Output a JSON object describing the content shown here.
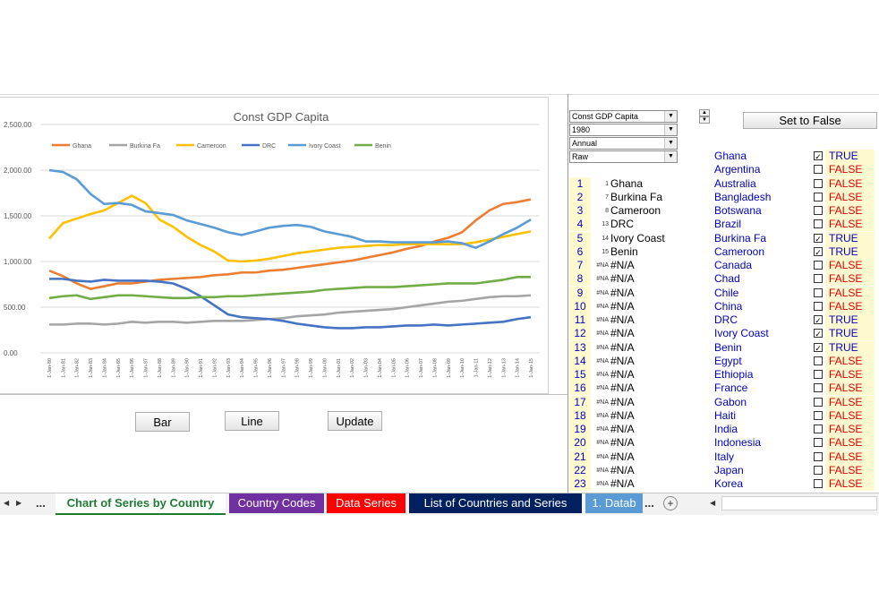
{
  "chart": {
    "title": "Const GDP Capita",
    "yticks": [
      "2,500.00",
      "2,000.00",
      "1,500.00",
      "1,000.00",
      "500.00",
      "0.00"
    ]
  },
  "chart_data": {
    "type": "line",
    "title": "Const GDP Capita",
    "ylim": [
      0,
      2500
    ],
    "x": [
      "1-Jan-80",
      "1-Jan-81",
      "1-Jan-82",
      "1-Jan-83",
      "1-Jan-84",
      "1-Jan-85",
      "1-Jan-86",
      "1-Jan-87",
      "1-Jan-88",
      "1-Jan-89",
      "1-Jan-90",
      "1-Jan-91",
      "1-Jan-92",
      "1-Jan-93",
      "1-Jan-94",
      "1-Jan-95",
      "1-Jan-96",
      "1-Jan-97",
      "1-Jan-98",
      "1-Jan-99",
      "1-Jan-00",
      "1-Jan-01",
      "1-Jan-02",
      "1-Jan-03",
      "1-Jan-04",
      "1-Jan-05",
      "1-Jan-06",
      "1-Jan-07",
      "1-Jan-08",
      "1-Jan-09",
      "1-Jan-10",
      "1-Jan-11",
      "1-Jan-12",
      "1-Jan-13",
      "1-Jan-14",
      "1-Jan-15"
    ],
    "series": [
      {
        "name": "Ghana",
        "color": "#ed7d31",
        "values": [
          900,
          840,
          760,
          700,
          730,
          760,
          760,
          780,
          800,
          810,
          820,
          830,
          850,
          860,
          880,
          880,
          900,
          910,
          930,
          950,
          970,
          990,
          1010,
          1040,
          1070,
          1100,
          1140,
          1170,
          1220,
          1260,
          1320,
          1450,
          1560,
          1630,
          1650,
          1680
        ]
      },
      {
        "name": "Burkina Fa",
        "color": "#a5a5a5",
        "values": [
          310,
          310,
          320,
          320,
          310,
          320,
          340,
          330,
          340,
          340,
          330,
          340,
          350,
          350,
          350,
          360,
          370,
          380,
          400,
          410,
          420,
          440,
          450,
          460,
          470,
          480,
          500,
          520,
          540,
          560,
          570,
          590,
          610,
          620,
          620,
          630
        ]
      },
      {
        "name": "Cameroon",
        "color": "#ffc000",
        "values": [
          1250,
          1420,
          1470,
          1520,
          1560,
          1640,
          1720,
          1640,
          1460,
          1380,
          1270,
          1180,
          1110,
          1010,
          1000,
          1010,
          1030,
          1060,
          1090,
          1110,
          1130,
          1150,
          1160,
          1170,
          1180,
          1180,
          1190,
          1190,
          1190,
          1190,
          1190,
          1210,
          1240,
          1270,
          1300,
          1330
        ]
      },
      {
        "name": "DRC",
        "color": "#4472c4",
        "values": [
          810,
          810,
          790,
          780,
          800,
          790,
          790,
          790,
          780,
          760,
          700,
          620,
          520,
          420,
          390,
          380,
          370,
          350,
          320,
          300,
          280,
          270,
          270,
          280,
          280,
          290,
          300,
          300,
          310,
          300,
          310,
          320,
          330,
          340,
          370,
          390
        ]
      },
      {
        "name": "Ivory Coast",
        "color": "#5b9bd5",
        "values": [
          2000,
          1980,
          1900,
          1740,
          1630,
          1640,
          1620,
          1550,
          1530,
          1510,
          1450,
          1410,
          1370,
          1320,
          1290,
          1330,
          1370,
          1390,
          1400,
          1380,
          1330,
          1300,
          1270,
          1220,
          1220,
          1210,
          1210,
          1210,
          1210,
          1220,
          1200,
          1150,
          1220,
          1300,
          1370,
          1460
        ]
      },
      {
        "name": "Benin",
        "color": "#70ad47",
        "values": [
          600,
          620,
          630,
          590,
          610,
          630,
          630,
          620,
          610,
          600,
          600,
          610,
          610,
          620,
          620,
          630,
          640,
          650,
          660,
          670,
          690,
          700,
          710,
          720,
          720,
          720,
          730,
          740,
          750,
          760,
          760,
          760,
          780,
          800,
          830,
          830
        ]
      }
    ]
  },
  "buttons": {
    "bar": "Bar",
    "line": "Line",
    "update": "Update",
    "set_false": "Set to False"
  },
  "controls": {
    "dd1": "Const GDP Capita",
    "dd2": "1980",
    "dd3": "Annual",
    "dd4": "Raw",
    "arrow": "▼",
    "spin_up": "▲",
    "spin_down": "▼"
  },
  "rows": [
    {
      "num": "",
      "code": "",
      "name": "",
      "country": "Ghana",
      "checked": true,
      "flag": "TRUE"
    },
    {
      "num": "",
      "code": "",
      "name": "",
      "country": "Argentina",
      "checked": false,
      "flag": "FALSE"
    },
    {
      "num": "1",
      "code": "1",
      "name": "Ghana",
      "country": "Australia",
      "checked": false,
      "flag": "FALSE"
    },
    {
      "num": "2",
      "code": "7",
      "name": "Burkina Fa",
      "country": "Bangladesh",
      "checked": false,
      "flag": "FALSE"
    },
    {
      "num": "3",
      "code": "8",
      "name": "Cameroon",
      "country": "Botswana",
      "checked": false,
      "flag": "FALSE"
    },
    {
      "num": "4",
      "code": "13",
      "name": "DRC",
      "country": "Brazil",
      "checked": false,
      "flag": "FALSE"
    },
    {
      "num": "5",
      "code": "14",
      "name": "Ivory Coast",
      "country": "Burkina Fa",
      "checked": true,
      "flag": "TRUE"
    },
    {
      "num": "6",
      "code": "15",
      "name": "Benin",
      "country": "Cameroon",
      "checked": true,
      "flag": "TRUE"
    },
    {
      "num": "7",
      "code": "#NA",
      "name": "#N/A",
      "country": "Canada",
      "checked": false,
      "flag": "FALSE"
    },
    {
      "num": "8",
      "code": "#NA",
      "name": "#N/A",
      "country": "Chad",
      "checked": false,
      "flag": "FALSE"
    },
    {
      "num": "9",
      "code": "#NA",
      "name": "#N/A",
      "country": "Chile",
      "checked": false,
      "flag": "FALSE"
    },
    {
      "num": "10",
      "code": "#NA",
      "name": "#N/A",
      "country": "China",
      "checked": false,
      "flag": "FALSE"
    },
    {
      "num": "11",
      "code": "#NA",
      "name": "#N/A",
      "country": "DRC",
      "checked": true,
      "flag": "TRUE"
    },
    {
      "num": "12",
      "code": "#NA",
      "name": "#N/A",
      "country": "Ivory Coast",
      "checked": true,
      "flag": "TRUE"
    },
    {
      "num": "13",
      "code": "#NA",
      "name": "#N/A",
      "country": "Benin",
      "checked": true,
      "flag": "TRUE"
    },
    {
      "num": "14",
      "code": "#NA",
      "name": "#N/A",
      "country": "Egypt",
      "checked": false,
      "flag": "FALSE"
    },
    {
      "num": "15",
      "code": "#NA",
      "name": "#N/A",
      "country": "Ethiopia",
      "checked": false,
      "flag": "FALSE"
    },
    {
      "num": "16",
      "code": "#NA",
      "name": "#N/A",
      "country": "France",
      "checked": false,
      "flag": "FALSE"
    },
    {
      "num": "17",
      "code": "#NA",
      "name": "#N/A",
      "country": "Gabon",
      "checked": false,
      "flag": "FALSE"
    },
    {
      "num": "18",
      "code": "#NA",
      "name": "#N/A",
      "country": "Haiti",
      "checked": false,
      "flag": "FALSE"
    },
    {
      "num": "19",
      "code": "#NA",
      "name": "#N/A",
      "country": "India",
      "checked": false,
      "flag": "FALSE"
    },
    {
      "num": "20",
      "code": "#NA",
      "name": "#N/A",
      "country": "Indonesia",
      "checked": false,
      "flag": "FALSE"
    },
    {
      "num": "21",
      "code": "#NA",
      "name": "#N/A",
      "country": "Italy",
      "checked": false,
      "flag": "FALSE"
    },
    {
      "num": "22",
      "code": "#NA",
      "name": "#N/A",
      "country": "Japan",
      "checked": false,
      "flag": "FALSE"
    },
    {
      "num": "23",
      "code": "#NA",
      "name": "#N/A",
      "country": "Korea",
      "checked": false,
      "flag": "FALSE"
    }
  ],
  "tabs": {
    "nav_prev": "◀",
    "nav_next": "▶",
    "ellipsis": "...",
    "active": "Chart of Series by Country",
    "t2": {
      "label": "Country Codes",
      "color": "#7030a0"
    },
    "t3": {
      "label": "Data Series",
      "color": "#ff0000"
    },
    "t4": {
      "label": "List of Countries and Series",
      "color": "#002060"
    },
    "t5": {
      "label": "1. Datab",
      "color": "#5b9bd5"
    },
    "more": "...",
    "add": "+",
    "scroll_left": "◀"
  }
}
